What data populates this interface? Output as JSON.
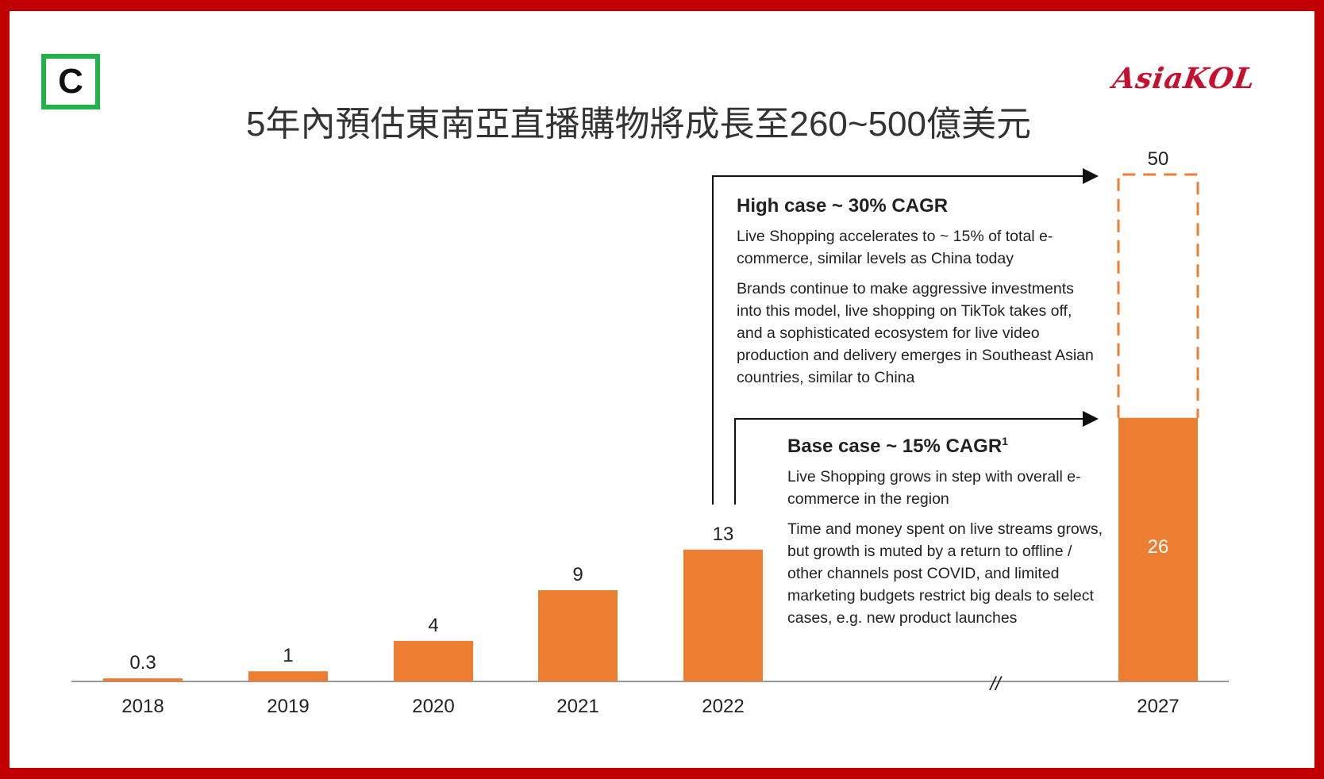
{
  "badge": {
    "letter": "C"
  },
  "logo": {
    "text": "AsiaKOL"
  },
  "colors": {
    "bar": "#ed7d31",
    "frame": "#c00000",
    "badge": "#22b14c"
  },
  "chart_data": {
    "type": "bar",
    "title": "5年內預估東南亞直播購物將成長至260~500億美元",
    "categories": [
      "2018",
      "2019",
      "2020",
      "2021",
      "2022",
      "2027"
    ],
    "values": [
      0.3,
      1,
      4,
      9,
      13,
      26
    ],
    "value_labels": [
      "0.3",
      "1",
      "4",
      "9",
      "13",
      "26"
    ],
    "projection": {
      "category": "2027",
      "base": 26,
      "high": 50,
      "high_label": "50"
    },
    "axis_break": "//",
    "grid": false,
    "legend": "none"
  },
  "annotations": {
    "high": {
      "title": "High case ~ 30% CAGR",
      "p1": "Live Shopping accelerates to ~ 15% of total e-commerce, similar levels as China today",
      "p2": "Brands continue to make aggressive investments into this model, live shopping on TikTok takes off, and a sophisticated ecosystem for live video production and delivery emerges in Southeast Asian countries, similar to China"
    },
    "base": {
      "title": "Base case ~ 15% CAGR",
      "sup": "1",
      "p1": "Live Shopping grows in step with overall e-commerce in the region",
      "p2": "Time and money spent on live streams grows, but growth is muted by a return to offline / other channels post COVID, and limited marketing budgets restrict big deals to select cases, e.g. new product launches"
    }
  }
}
